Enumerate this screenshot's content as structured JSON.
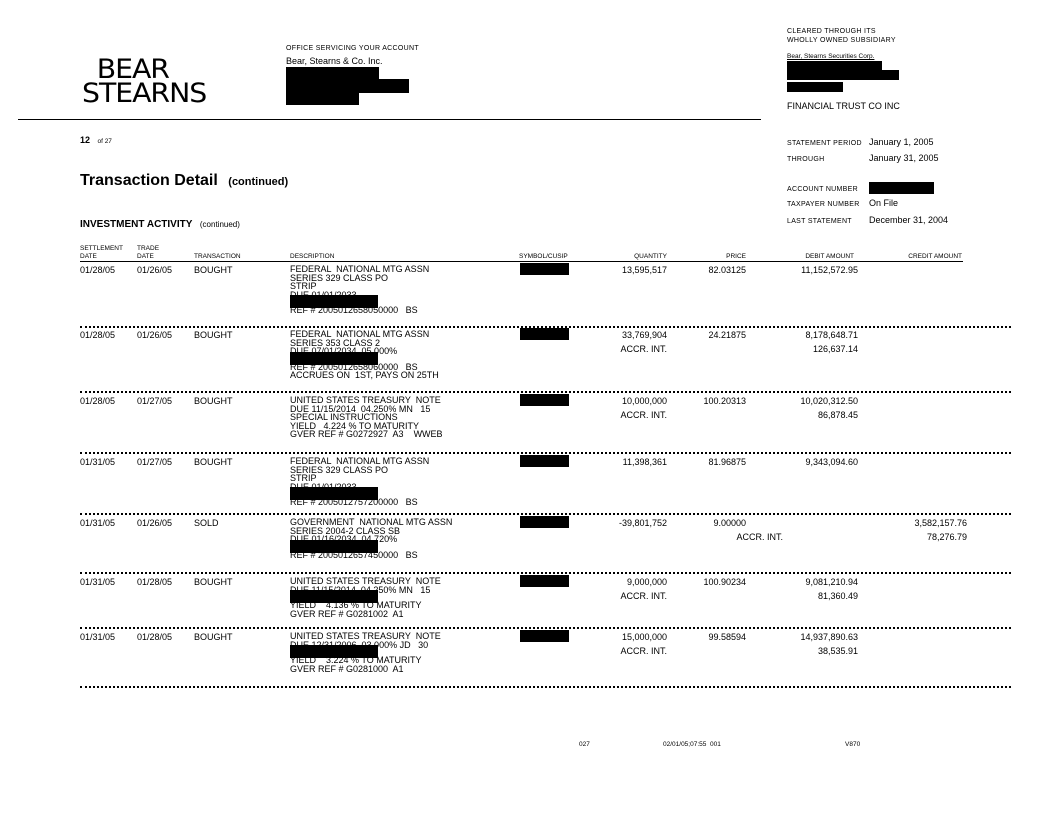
{
  "logo": {
    "line1": "BEAR",
    "line2": "STEARNS"
  },
  "office": {
    "label": "OFFICE SERVICING YOUR ACCOUNT",
    "name": "Bear, Stearns & Co. Inc."
  },
  "clearing": {
    "line1": "CLEARED THROUGH ITS",
    "line2": "WHOLLY OWNED SUBSIDIARY",
    "name": "Bear, Stearns Securities Corp.",
    "trust": "FINANCIAL TRUST CO INC"
  },
  "page": {
    "number": "12",
    "of": "of 27"
  },
  "statement": {
    "period_label": "STATEMENT PERIOD",
    "period_value": "January 1, 2005",
    "through_label": "THROUGH",
    "through_value": "January 31, 2005",
    "account_label": "ACCOUNT NUMBER",
    "taxpayer_label": "TAXPAYER NUMBER",
    "taxpayer_value": "On File",
    "last_label": "LAST STATEMENT",
    "last_value": "December 31, 2004"
  },
  "title": {
    "main": "Transaction Detail",
    "suffix": "(continued)"
  },
  "section": {
    "main": "INVESTMENT ACTIVITY",
    "suffix": "(continued)"
  },
  "columns": {
    "settlement": [
      "SETTLEMENT",
      "DATE"
    ],
    "trade": [
      "TRADE",
      "DATE"
    ],
    "transaction": "TRANSACTION",
    "description": "DESCRIPTION",
    "symbol": "SYMBOL/CUSIP",
    "quantity": "QUANTITY",
    "price": "PRICE",
    "debit": "DEBIT AMOUNT",
    "credit": "CREDIT AMOUNT"
  },
  "rows": [
    {
      "settle": "01/28/05",
      "trade": "01/26/05",
      "txn": "BOUGHT",
      "desc": [
        {
          "t": "FEDERAL  NATIONAL MTG ASSN"
        },
        {
          "t": "SERIES 329 CLASS PO"
        },
        {
          "t": "STRIP"
        },
        {
          "t": "DUE 01/01/2033"
        },
        {
          "r": true
        },
        {
          "t": "REF # 2005012658050000   BS"
        }
      ],
      "qty": "13,595,517",
      "price": "82.03125",
      "debit": "11,152,572.95",
      "credit": "",
      "accr_label": "",
      "accr_debit": "",
      "accr_credit": ""
    },
    {
      "settle": "01/28/05",
      "trade": "01/26/05",
      "txn": "BOUGHT",
      "desc": [
        {
          "t": "FEDERAL  NATIONAL MTG ASSN"
        },
        {
          "t": "SERIES 353 CLASS 2"
        },
        {
          "t": "DUE 07/01/2034  05.000%"
        },
        {
          "r": true
        },
        {
          "t": "REF # 2005012658060000   BS"
        },
        {
          "t": "ACCRUES ON  1ST, PAYS ON 25TH"
        }
      ],
      "qty": "33,769,904",
      "price": "24.21875",
      "debit": "8,178,648.71",
      "credit": "",
      "accr_label": "ACCR. INT.",
      "accr_debit": "126,637.14",
      "accr_credit": ""
    },
    {
      "settle": "01/28/05",
      "trade": "01/27/05",
      "txn": "BOUGHT",
      "desc": [
        {
          "t": "UNITED STATES TREASURY  NOTE"
        },
        {
          "t": "DUE 11/15/2014  04.250% MN   15"
        },
        {
          "t": "SPECIAL INSTRUCTIONS"
        },
        {
          "t": "YIELD   4.224 % TO MATURITY"
        },
        {
          "t": "GVER REF # G0272927  A3    WWEB"
        }
      ],
      "qty": "10,000,000",
      "price": "100.20313",
      "debit": "10,020,312.50",
      "credit": "",
      "accr_label": "ACCR. INT.",
      "accr_debit": "86,878.45",
      "accr_credit": ""
    },
    {
      "settle": "01/31/05",
      "trade": "01/27/05",
      "txn": "BOUGHT",
      "desc": [
        {
          "t": "FEDERAL  NATIONAL MTG ASSN"
        },
        {
          "t": "SERIES 329 CLASS PO"
        },
        {
          "t": "STRIP"
        },
        {
          "t": "DUE 01/01/2033"
        },
        {
          "r": true
        },
        {
          "t": "REF # 2005012757200000   BS"
        }
      ],
      "qty": "11,398,361",
      "price": "81.96875",
      "debit": "9,343,094.60",
      "credit": "",
      "accr_label": "",
      "accr_debit": "",
      "accr_credit": ""
    },
    {
      "settle": "01/31/05",
      "trade": "01/26/05",
      "txn": "SOLD",
      "desc": [
        {
          "t": "GOVERNMENT  NATIONAL MTG ASSN"
        },
        {
          "t": "SERIES 2004-2 CLASS SB"
        },
        {
          "t": "DUE 01/16/2034  04.720%"
        },
        {
          "r": true
        },
        {
          "t": "REF # 2005012657450000   BS"
        }
      ],
      "qty": "-39,801,752",
      "price": "9.00000",
      "debit": "",
      "credit": "3,582,157.76",
      "accr_label": "ACCR. INT.",
      "accr_debit": "",
      "accr_credit": "78,276.79"
    },
    {
      "settle": "01/31/05",
      "trade": "01/28/05",
      "txn": "BOUGHT",
      "desc": [
        {
          "t": "UNITED STATES TREASURY  NOTE"
        },
        {
          "t": "DUE 11/15/2014  04.250% MN   15"
        },
        {
          "r": true
        },
        {
          "t": "YIELD    4.136 % TO MATURITY"
        },
        {
          "t": "GVER REF # G0281002  A1"
        }
      ],
      "qty": "9,000,000",
      "price": "100.90234",
      "debit": "9,081,210.94",
      "credit": "",
      "accr_label": "ACCR. INT.",
      "accr_debit": "81,360.49",
      "accr_credit": ""
    },
    {
      "settle": "01/31/05",
      "trade": "01/28/05",
      "txn": "BOUGHT",
      "desc": [
        {
          "t": "UNITED STATES TREASURY  NOTE"
        },
        {
          "t": "DUE 12/31/2006  03.000% JD   30"
        },
        {
          "r": true
        },
        {
          "t": "YIELD    3.224 % TO MATURITY"
        },
        {
          "t": "GVER REF # G0281000  A1"
        }
      ],
      "qty": "15,000,000",
      "price": "99.58594",
      "debit": "14,937,890.63",
      "credit": "",
      "accr_label": "ACCR. INT.",
      "accr_debit": "38,535.91",
      "accr_credit": ""
    }
  ],
  "footer": {
    "code": "027",
    "timestamp": "02/01/05;07:55  001",
    "version": "V870"
  }
}
